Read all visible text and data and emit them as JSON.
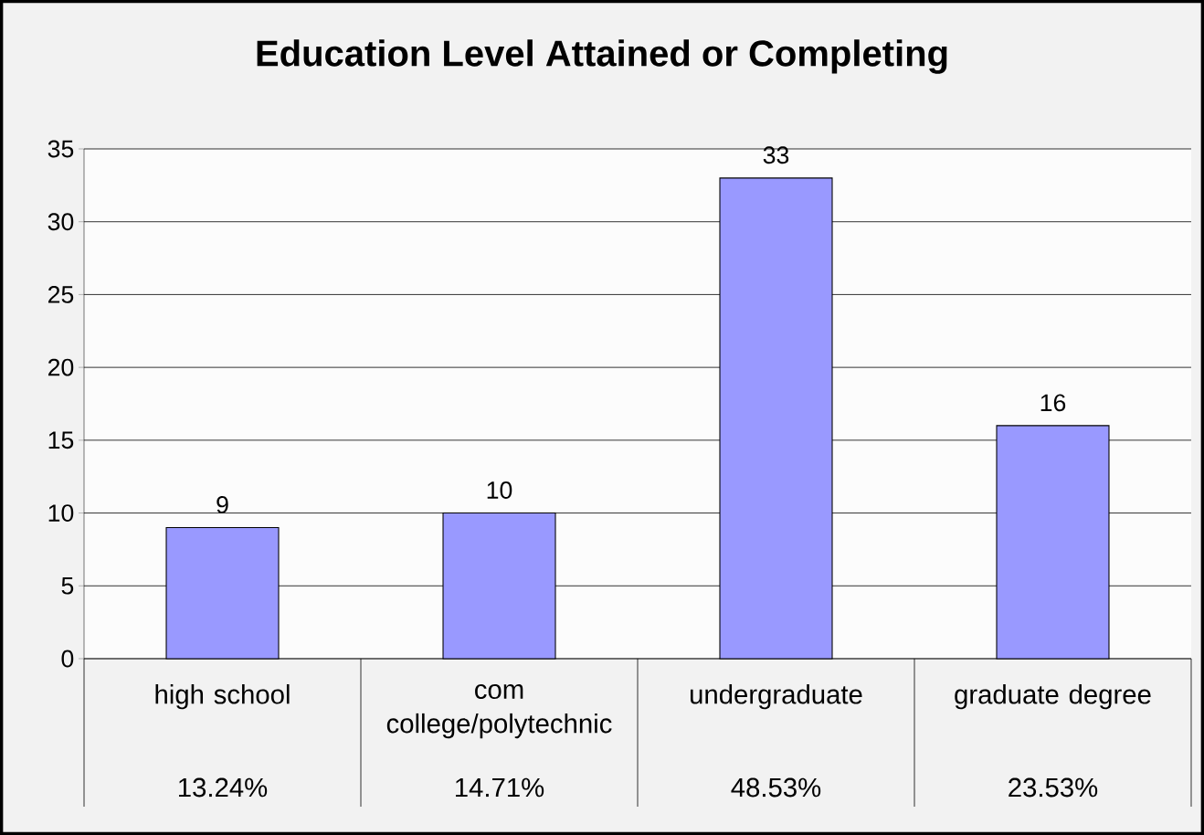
{
  "chart_data": {
    "type": "bar",
    "title": "Education Level Attained or Completing",
    "categories": [
      "high school",
      "com college/polytechnic",
      "undergraduate",
      "graduate degree"
    ],
    "values": [
      9,
      10,
      33,
      16
    ],
    "color": "#9999ff",
    "data_labels": true,
    "ylim": [
      0,
      35
    ],
    "yticks": [
      0,
      5,
      10,
      15,
      20,
      25,
      30,
      35
    ],
    "grid": "y",
    "annotations": [
      "13.24%",
      "14.71%",
      "48.53%",
      "23.53%"
    ]
  }
}
